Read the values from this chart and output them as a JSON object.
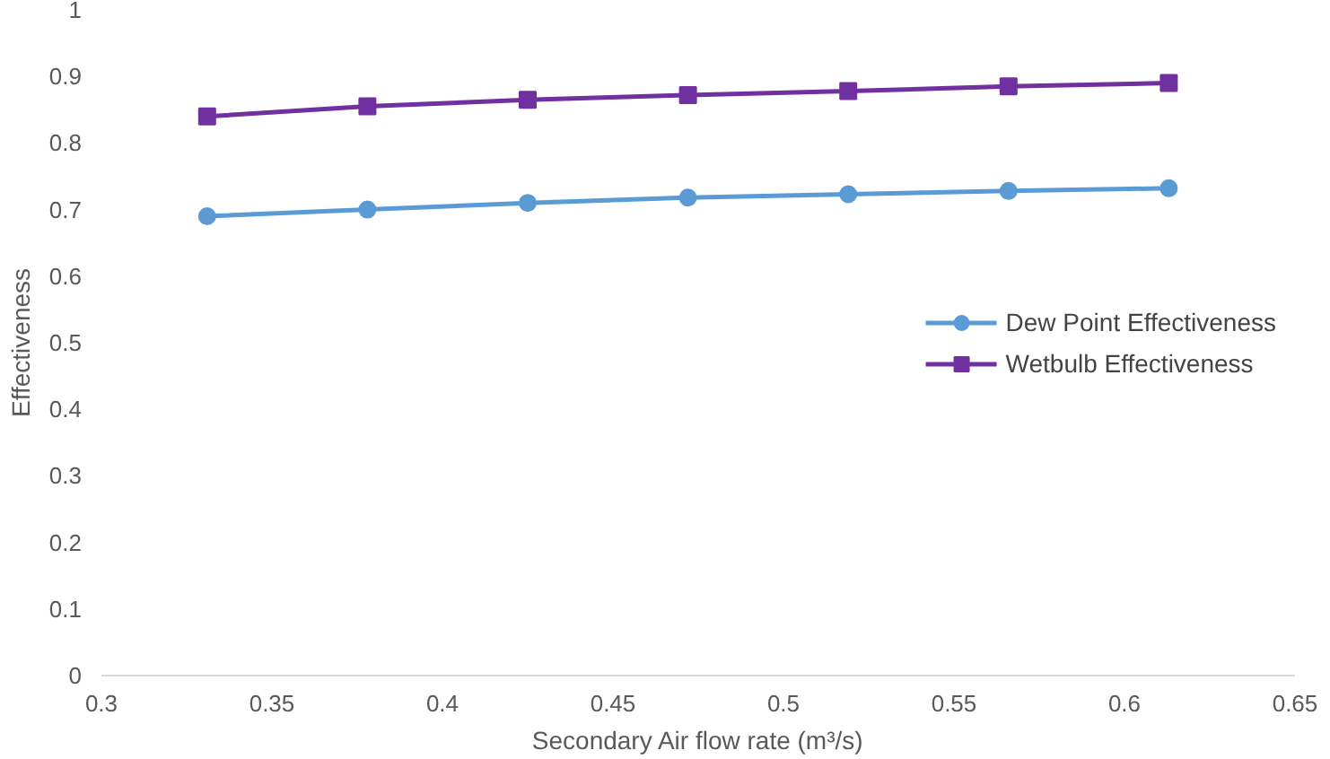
{
  "chart_data": {
    "type": "line",
    "xlabel": "Secondary Air flow rate (m³/s)",
    "ylabel": "Effectiveness",
    "x": [
      0.331,
      0.378,
      0.425,
      0.472,
      0.519,
      0.566,
      0.613
    ],
    "series": [
      {
        "name": "Dew Point Effectiveness",
        "color": "#5b9bd5",
        "marker": "circle",
        "values": [
          0.69,
          0.7,
          0.71,
          0.718,
          0.723,
          0.728,
          0.732
        ]
      },
      {
        "name": "Wetbulb Effectiveness",
        "color": "#7030a0",
        "marker": "square",
        "values": [
          0.84,
          0.855,
          0.865,
          0.872,
          0.878,
          0.885,
          0.89
        ]
      }
    ],
    "xlim": [
      0.3,
      0.65
    ],
    "xticks": [
      0.3,
      0.35,
      0.4,
      0.45,
      0.5,
      0.55,
      0.6,
      0.65
    ],
    "ylim": [
      0,
      1
    ],
    "yticks": [
      0,
      0.1,
      0.2,
      0.3,
      0.4,
      0.5,
      0.6,
      0.7,
      0.8,
      0.9,
      1
    ],
    "grid": false,
    "legend": "right",
    "line_style": "solid"
  }
}
